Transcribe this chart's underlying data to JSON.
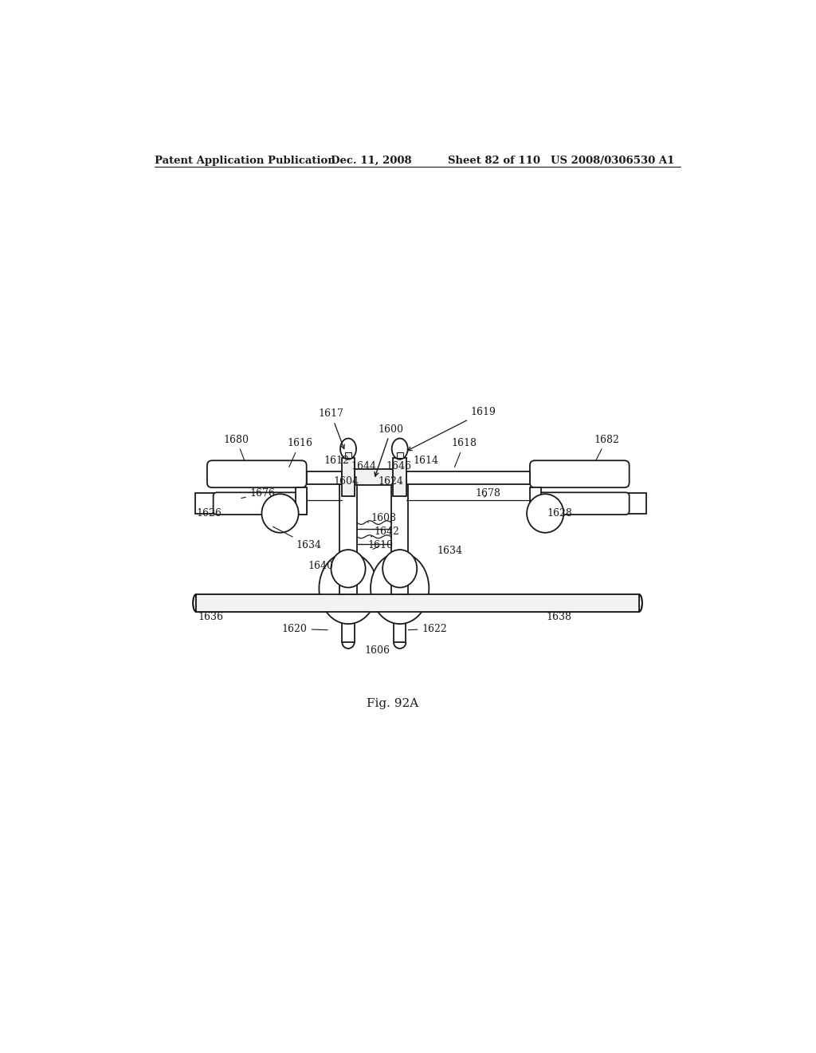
{
  "bg_color": "#ffffff",
  "header_text": "Patent Application Publication",
  "header_date": "Dec. 11, 2008",
  "header_sheet": "Sheet 82 of 110",
  "header_patent": "US 2008/0306530 A1",
  "caption": "Fig. 92A",
  "line_color": "#1a1a1a",
  "fill_light": "#f2f2f2",
  "fill_white": "#ffffff"
}
